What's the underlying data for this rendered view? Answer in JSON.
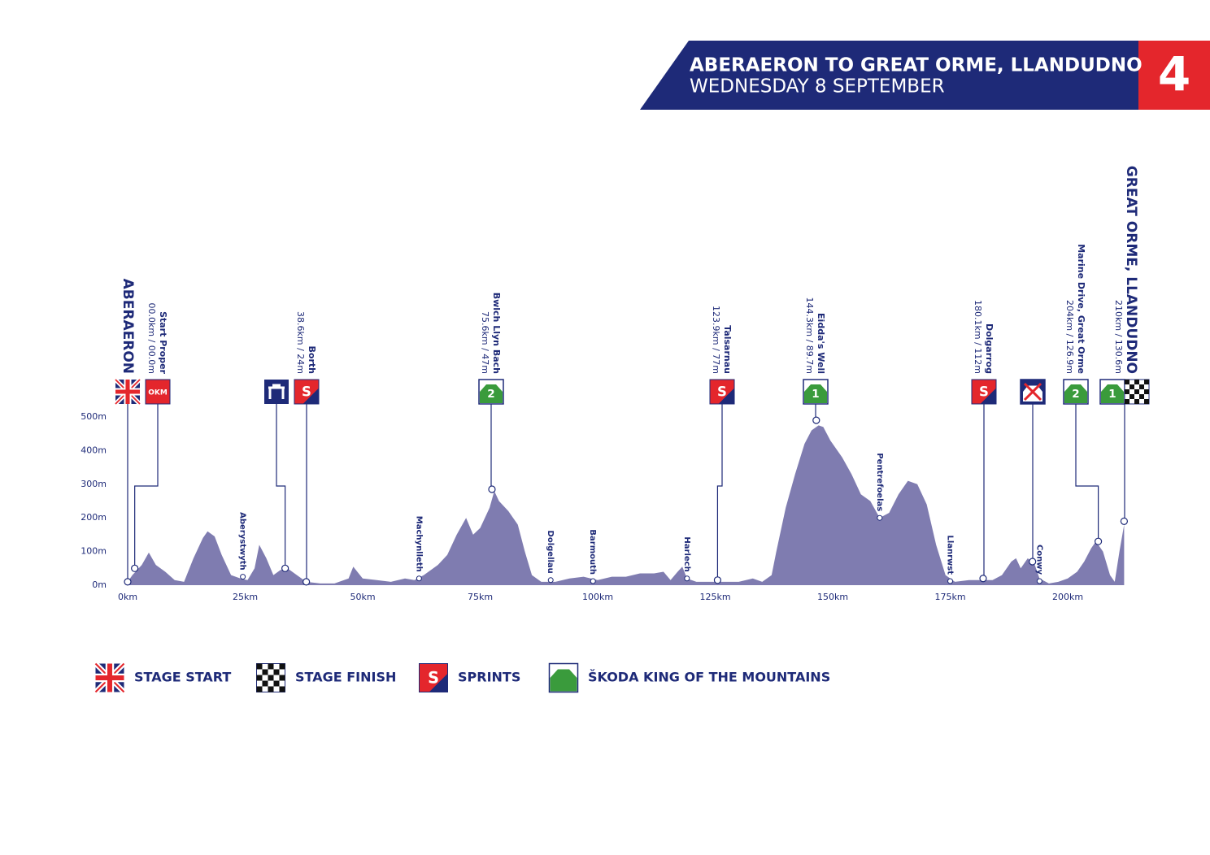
{
  "chart_data": {
    "type": "area",
    "title": "ABERAERON TO GREAT ORME, LLANDUDNO",
    "subtitle": "WEDNESDAY 8 SEPTEMBER",
    "stage_number": "4",
    "color": "#7f7cb0",
    "xlim": [
      0,
      212
    ],
    "ylim": [
      0,
      500
    ],
    "xticks": [
      {
        "value": 0,
        "label": "0km"
      },
      {
        "value": 25,
        "label": "25km"
      },
      {
        "value": 50,
        "label": "50km"
      },
      {
        "value": 75,
        "label": "75km"
      },
      {
        "value": 100,
        "label": "100km"
      },
      {
        "value": 125,
        "label": "125km"
      },
      {
        "value": 150,
        "label": "150km"
      },
      {
        "value": 175,
        "label": "175km"
      },
      {
        "value": 200,
        "label": "200km"
      }
    ],
    "yticks": [
      {
        "value": 0,
        "label": "0m"
      },
      {
        "value": 100,
        "label": "100m"
      },
      {
        "value": 200,
        "label": "200m"
      },
      {
        "value": 300,
        "label": "300m"
      },
      {
        "value": 400,
        "label": "400m"
      },
      {
        "value": 500,
        "label": "500m"
      }
    ],
    "x": [
      0,
      1,
      3,
      4.5,
      6,
      8,
      10,
      12,
      14,
      16,
      17,
      18.5,
      20,
      22,
      24,
      25.5,
      27,
      28,
      29.5,
      31,
      32.5,
      34,
      36,
      38,
      41,
      44,
      47,
      48,
      50,
      53,
      56,
      59,
      61,
      63,
      66,
      68,
      70,
      72,
      73.5,
      75,
      77,
      78,
      79,
      81,
      83,
      84.5,
      86,
      88,
      91,
      94,
      97,
      100,
      103,
      106,
      109,
      112,
      114,
      115.5,
      117,
      118,
      119,
      121,
      124,
      127,
      130,
      133,
      135,
      137,
      138,
      140,
      142,
      144,
      145.5,
      147,
      148,
      149.5,
      152,
      154,
      156,
      158,
      160,
      162,
      164,
      166,
      168,
      170,
      172,
      174,
      176,
      179,
      182,
      184,
      186,
      188,
      189,
      190,
      191.5,
      193,
      194,
      196,
      198,
      200,
      202,
      203.5,
      205,
      206,
      207.5,
      209,
      210,
      211,
      212
    ],
    "values": [
      10,
      30,
      60,
      97,
      60,
      40,
      15,
      10,
      80,
      140,
      160,
      145,
      90,
      30,
      20,
      15,
      50,
      120,
      80,
      30,
      45,
      50,
      30,
      10,
      5,
      5,
      20,
      55,
      20,
      15,
      10,
      20,
      15,
      30,
      60,
      90,
      150,
      200,
      150,
      170,
      230,
      280,
      250,
      220,
      180,
      100,
      30,
      10,
      10,
      20,
      25,
      15,
      25,
      25,
      35,
      35,
      40,
      15,
      40,
      55,
      20,
      10,
      10,
      10,
      10,
      20,
      10,
      30,
      100,
      230,
      330,
      420,
      460,
      475,
      470,
      430,
      380,
      330,
      270,
      250,
      200,
      215,
      270,
      310,
      300,
      240,
      120,
      30,
      10,
      15,
      15,
      15,
      30,
      70,
      80,
      50,
      80,
      60,
      20,
      5,
      10,
      20,
      40,
      70,
      110,
      130,
      100,
      30,
      10,
      100,
      180
    ],
    "markers": [
      {
        "name": "ABERAERON",
        "km": 0,
        "elev": 10
      },
      {
        "name": "Start Proper",
        "detail": "00.0km / 00.0m",
        "km": 1.5,
        "elev": 50,
        "badge": "OKM"
      },
      {
        "km": 33.5,
        "elev": 50
      },
      {
        "name": "Borth",
        "detail": "38.6km / 24m",
        "km": 38,
        "elev": 10,
        "badge": "S"
      },
      {
        "name": "Bwlch Llyn Bach",
        "detail": "75.6km / 47m",
        "km": 77.5,
        "elev": 285,
        "badge": "2"
      },
      {
        "name": "Talsarnau",
        "detail": "123.9km / 77m",
        "km": 125.5,
        "elev": 15,
        "badge": "S"
      },
      {
        "name": "Eidda's Well",
        "detail": "144.3km / 89.7m",
        "km": 146.5,
        "elev": 490,
        "badge": "1"
      },
      {
        "name": "Dolgarrog",
        "detail": "180.1km / 112m",
        "km": 182,
        "elev": 20,
        "badge": "S"
      },
      {
        "km": 192.5,
        "elev": 70
      },
      {
        "name": "Marine Drive, Great Orme",
        "detail": "204km / 126.9m",
        "km": 206.5,
        "elev": 130,
        "badge": "2"
      },
      {
        "name": "GREAT ORME, LLANDUDNO",
        "detail": "210km / 130.6m",
        "km": 212,
        "elev": 190,
        "badge": "1"
      }
    ],
    "towns": [
      {
        "name": "Aberystwyth",
        "km": 24.5,
        "elev": 25
      },
      {
        "name": "Machynlleth",
        "km": 62,
        "elev": 20
      },
      {
        "name": "Dolgellau",
        "km": 90,
        "elev": 15
      },
      {
        "name": "Barmouth",
        "km": 99,
        "elev": 12
      },
      {
        "name": "Harlech",
        "km": 119,
        "elev": 20
      },
      {
        "name": "Pentrefoelas",
        "km": 160,
        "elev": 200
      },
      {
        "name": "Llanrwst",
        "km": 175,
        "elev": 12
      },
      {
        "name": "Conwy",
        "km": 194,
        "elev": 12
      }
    ],
    "legend": [
      {
        "label": "STAGE START"
      },
      {
        "label": "STAGE FINISH"
      },
      {
        "label": "SPRINTS",
        "badge": "S"
      },
      {
        "label": "ŠKODA KING OF THE MOUNTAINS"
      }
    ]
  }
}
